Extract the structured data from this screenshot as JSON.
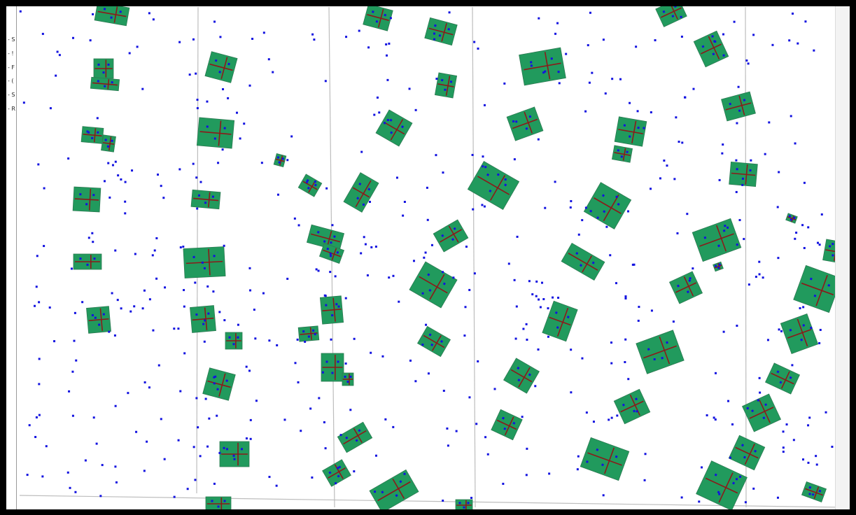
{
  "colors": {
    "background": "#ffffff",
    "frame": "#000000",
    "building": "#219a5d",
    "building_edge": "#2d7a52",
    "centerline": "#8b1a1a",
    "point": "#1212e0",
    "grid": "#bdbdbd"
  },
  "icons": {
    "point": "point-marker-icon",
    "building": "building-polygon-icon"
  },
  "legend": {
    "items": [
      {
        "text": "- S"
      },
      {
        "text": "- !"
      },
      {
        "text": "- F"
      },
      {
        "text": "- ("
      },
      {
        "text": "- S"
      },
      {
        "text": "- R"
      }
    ]
  }
}
